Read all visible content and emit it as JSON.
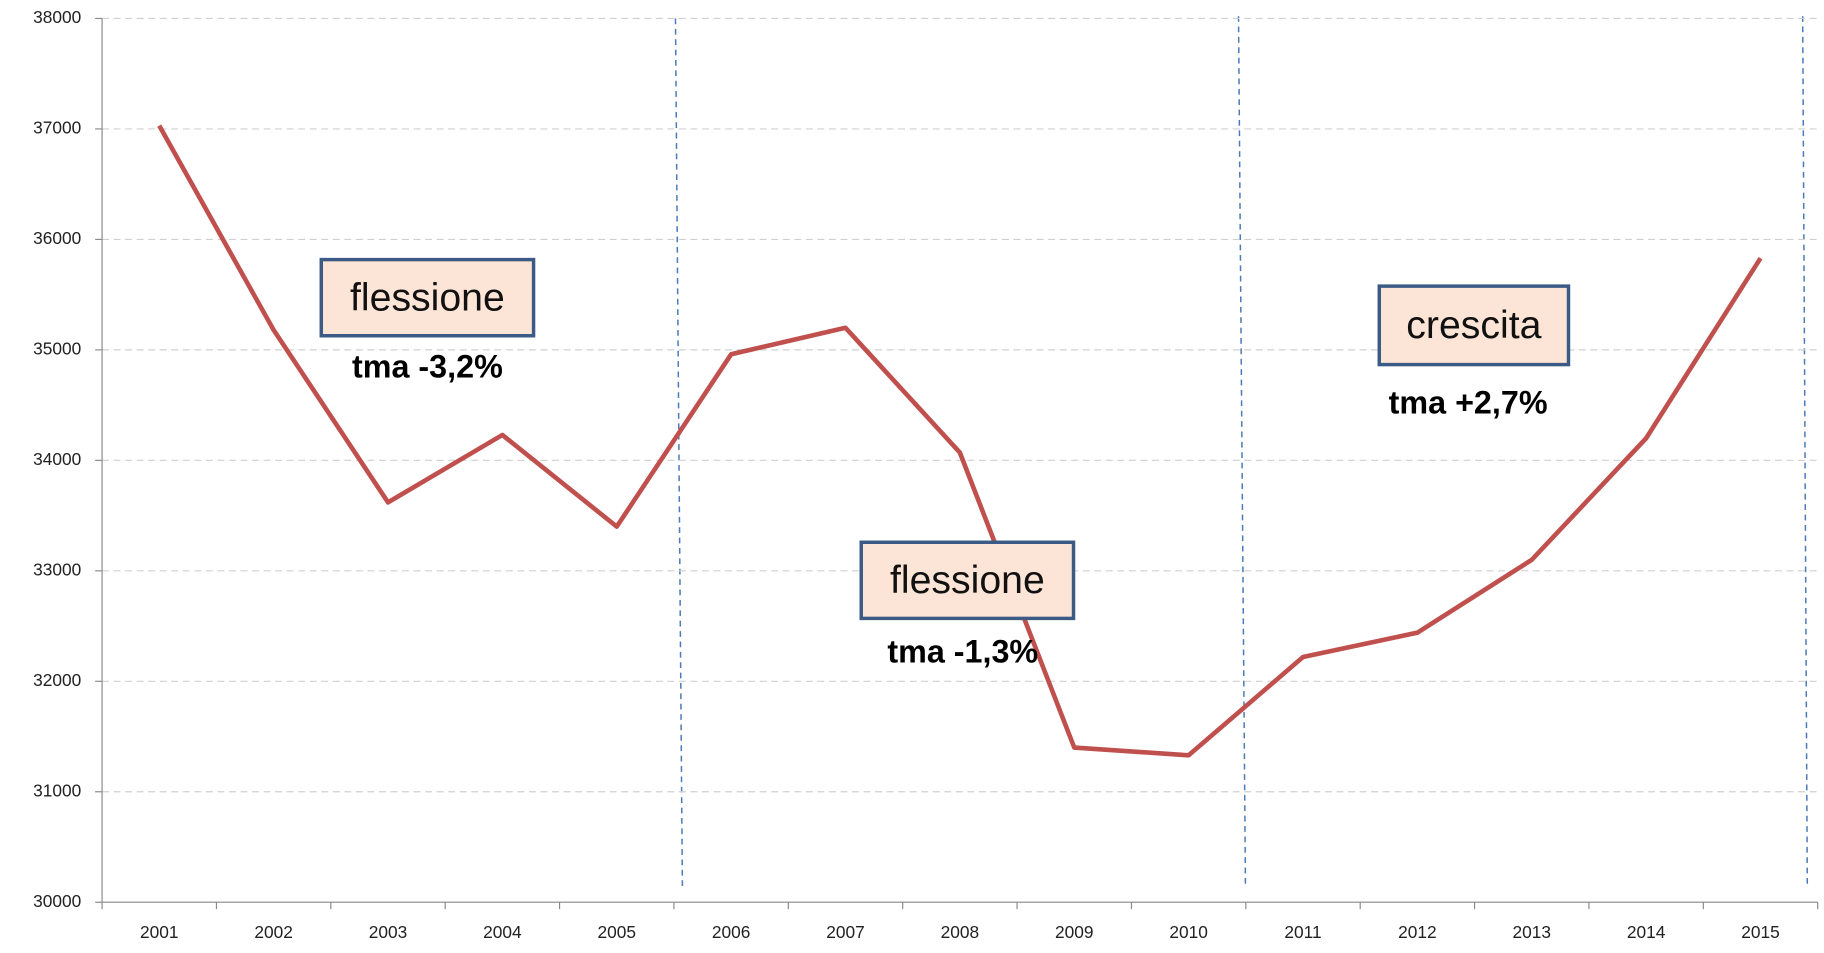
{
  "chart_data": {
    "type": "line",
    "categories": [
      "2001",
      "2002",
      "2003",
      "2004",
      "2005",
      "2006",
      "2007",
      "2008",
      "2009",
      "2010",
      "2011",
      "2012",
      "2013",
      "2014",
      "2015"
    ],
    "series": [
      {
        "name": "",
        "color": "#c0504d",
        "values": [
          37030,
          35180,
          33620,
          34230,
          33400,
          34960,
          35200,
          34070,
          31400,
          31330,
          32220,
          32440,
          33100,
          34200,
          35830
        ]
      }
    ],
    "ylim": [
      30000,
      38000
    ],
    "yticks": [
      30000,
      31000,
      32000,
      33000,
      34000,
      35000,
      36000,
      37000,
      38000
    ],
    "grid": true,
    "annotations": [
      {
        "title": "flessione",
        "text": "tma -3,2%"
      },
      {
        "title": "flessione",
        "text": "tma -1,3%"
      },
      {
        "title": "crescita",
        "text": "tma +2,7%"
      }
    ]
  }
}
